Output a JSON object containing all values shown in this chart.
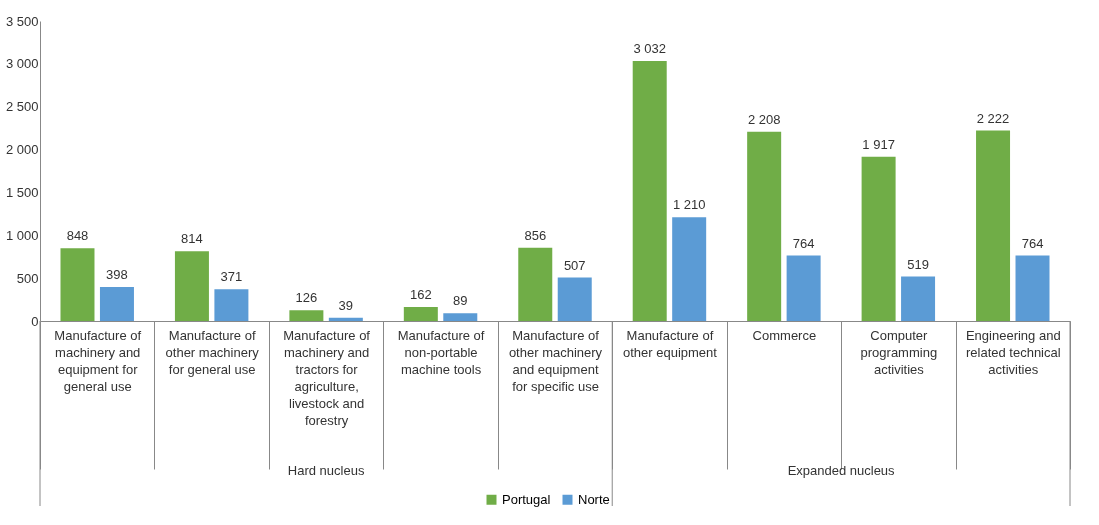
{
  "chart_data": {
    "type": "bar",
    "categories": [
      "Manufacture of\nmachinery and\nequipment for\ngeneral use",
      "Manufacture of\nother machinery\nfor general use",
      "Manufacture of\nmachinery and\ntractors for\nagriculture,\nlivestock and\nforestry",
      "Manufacture of\nnon-portable\nmachine tools",
      "Manufacture of\nother machinery\nand equipment\nfor specific use",
      "Manufacture of\nother equipment",
      "Commerce",
      "Computer\nprogramming\nactivities",
      "Engineering and\nrelated technical\nactivities"
    ],
    "series": [
      {
        "name": "Portugal",
        "color": "#70ad47",
        "values": [
          848,
          814,
          126,
          162,
          856,
          3032,
          2208,
          1917,
          2222
        ],
        "value_labels": [
          "848",
          "814",
          "126",
          "162",
          "856",
          "3 032",
          "2 208",
          "1 917",
          "2 222"
        ]
      },
      {
        "name": "Norte",
        "color": "#5b9bd5",
        "values": [
          398,
          371,
          39,
          89,
          507,
          1210,
          764,
          519,
          764
        ],
        "value_labels": [
          "398",
          "371",
          "39",
          "89",
          "507",
          "1 210",
          "764",
          "519",
          "764"
        ]
      }
    ],
    "ylim": [
      0,
      3500
    ],
    "yticks": [
      0,
      500,
      {
        "value": 1000,
        "label": "1 000"
      },
      {
        "value": 1500,
        "label": "1 500"
      },
      {
        "value": 2000,
        "label": "2 000"
      },
      {
        "value": 2500,
        "label": "2 500"
      },
      {
        "value": 3000,
        "label": "3 000"
      },
      {
        "value": 3500,
        "label": "3 500"
      }
    ],
    "annotations": [
      "Hard nucleus",
      "Expanded nucleus"
    ],
    "legend": "bottom",
    "grid": false
  }
}
